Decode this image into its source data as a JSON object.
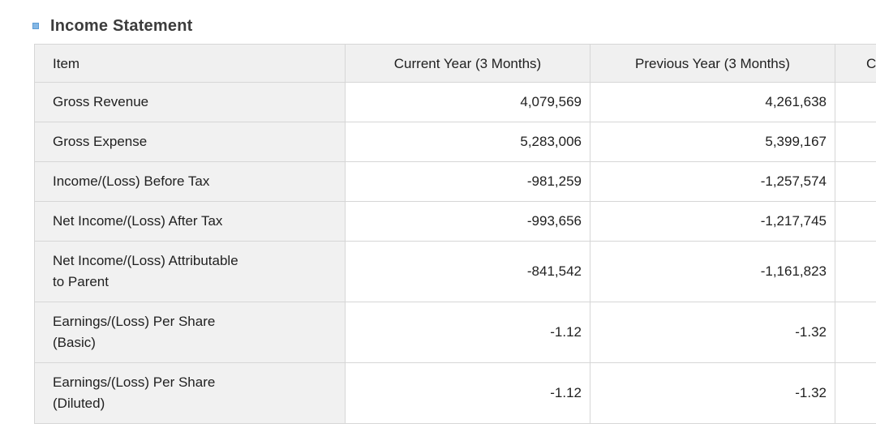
{
  "section": {
    "title": "Income Statement"
  },
  "colors": {
    "bullet_blue": "#5b9bd5",
    "header_bg": "#f0f0f0",
    "item_cell_bg": "#f1f1f1",
    "border": "#d6d6d6",
    "text": "#212121",
    "title_text": "#3c3c3c"
  },
  "table": {
    "columns": [
      {
        "label": "Item"
      },
      {
        "label": "Current Year (3 Months)"
      },
      {
        "label": "Previous Year (3 Months)"
      },
      {
        "label": "C",
        "note": "clipped at right edge of screenshot"
      }
    ],
    "rows": [
      {
        "item": "Gross Revenue",
        "current": "4,079,569",
        "previous": "4,261,638"
      },
      {
        "item": "Gross Expense",
        "current": "5,283,006",
        "previous": "5,399,167"
      },
      {
        "item": "Income/(Loss) Before Tax",
        "current": "-981,259",
        "previous": "-1,257,574"
      },
      {
        "item": "Net Income/(Loss) After Tax",
        "current": "-993,656",
        "previous": "-1,217,745"
      },
      {
        "item": "Net Income/(Loss) Attributable\nto Parent",
        "current": "-841,542",
        "previous": "-1,161,823"
      },
      {
        "item": "Earnings/(Loss) Per Share\n(Basic)",
        "current": "-1.12",
        "previous": "-1.32"
      },
      {
        "item": "Earnings/(Loss) Per Share\n(Diluted)",
        "current": "-1.12",
        "previous": "-1.32"
      }
    ]
  }
}
